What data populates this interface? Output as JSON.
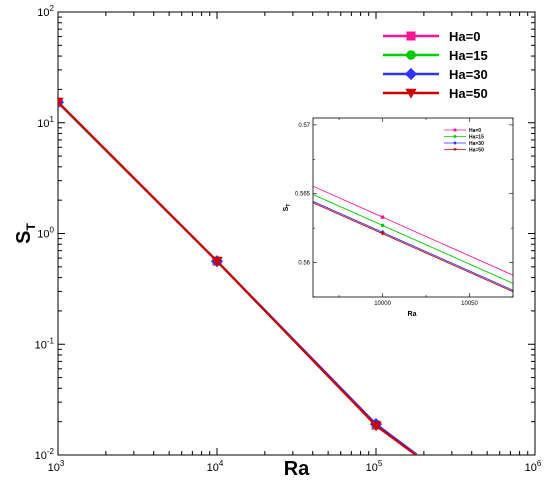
{
  "chart_data": [
    {
      "type": "line",
      "xlabel": "Ra",
      "ylabel": "S",
      "ylabel_sub": "T",
      "xscale": "log",
      "yscale": "log",
      "xlim": [
        1000,
        1000000
      ],
      "ylim": [
        0.01,
        100
      ],
      "x_ticks": [
        {
          "base": "10",
          "exp": "3"
        },
        {
          "base": "10",
          "exp": "4"
        },
        {
          "base": "10",
          "exp": "5"
        },
        {
          "base": "10",
          "exp": "6"
        }
      ],
      "y_ticks": [
        {
          "base": "10",
          "exp": "-2"
        },
        {
          "base": "10",
          "exp": "-1"
        },
        {
          "base": "10",
          "exp": "0"
        },
        {
          "base": "10",
          "exp": "1"
        },
        {
          "base": "10",
          "exp": "2"
        }
      ],
      "x": [
        1000,
        10000,
        100000,
        180000
      ],
      "series": [
        {
          "name": "Ha=0",
          "color": "#ff1493",
          "marker": "square",
          "values": [
            15.2,
            0.5633,
            0.0186,
            0.01
          ]
        },
        {
          "name": "Ha=15",
          "color": "#00cc00",
          "marker": "circle",
          "values": [
            15.2,
            0.5627,
            0.0187,
            0.01
          ]
        },
        {
          "name": "Ha=30",
          "color": "#3333ff",
          "marker": "diamond",
          "values": [
            15.3,
            0.5622,
            0.019,
            0.0101
          ]
        },
        {
          "name": "Ha=50",
          "color": "#cc0000",
          "marker": "triangle-down",
          "values": [
            15.4,
            0.5621,
            0.0184,
            0.0099
          ]
        }
      ],
      "legend_position": "top-right",
      "grid": false
    },
    {
      "type": "line",
      "inset": true,
      "xlabel": "Ra",
      "ylabel": "S",
      "ylabel_sub": "T",
      "xlim": [
        9960,
        10075
      ],
      "ylim": [
        0.5575,
        0.5705
      ],
      "x_ticks": [
        "10000",
        "10050"
      ],
      "y_ticks": [
        "0.56",
        "0.565",
        "0.57"
      ],
      "marker_x": 10000,
      "series": [
        {
          "name": "Ha=0",
          "color": "#ff1493",
          "marker": "square",
          "slope": -5.62e-05,
          "value_at_marker": 0.5633
        },
        {
          "name": "Ha=15",
          "color": "#00cc00",
          "marker": "circle",
          "slope": -5.62e-05,
          "value_at_marker": 0.5627
        },
        {
          "name": "Ha=30",
          "color": "#3333ff",
          "marker": "diamond",
          "slope": -5.62e-05,
          "value_at_marker": 0.5622
        },
        {
          "name": "Ha=50",
          "color": "#cc0000",
          "marker": "triangle-down",
          "slope": -5.62e-05,
          "value_at_marker": 0.5621
        }
      ],
      "legend_position": "top-right",
      "grid": false
    }
  ]
}
